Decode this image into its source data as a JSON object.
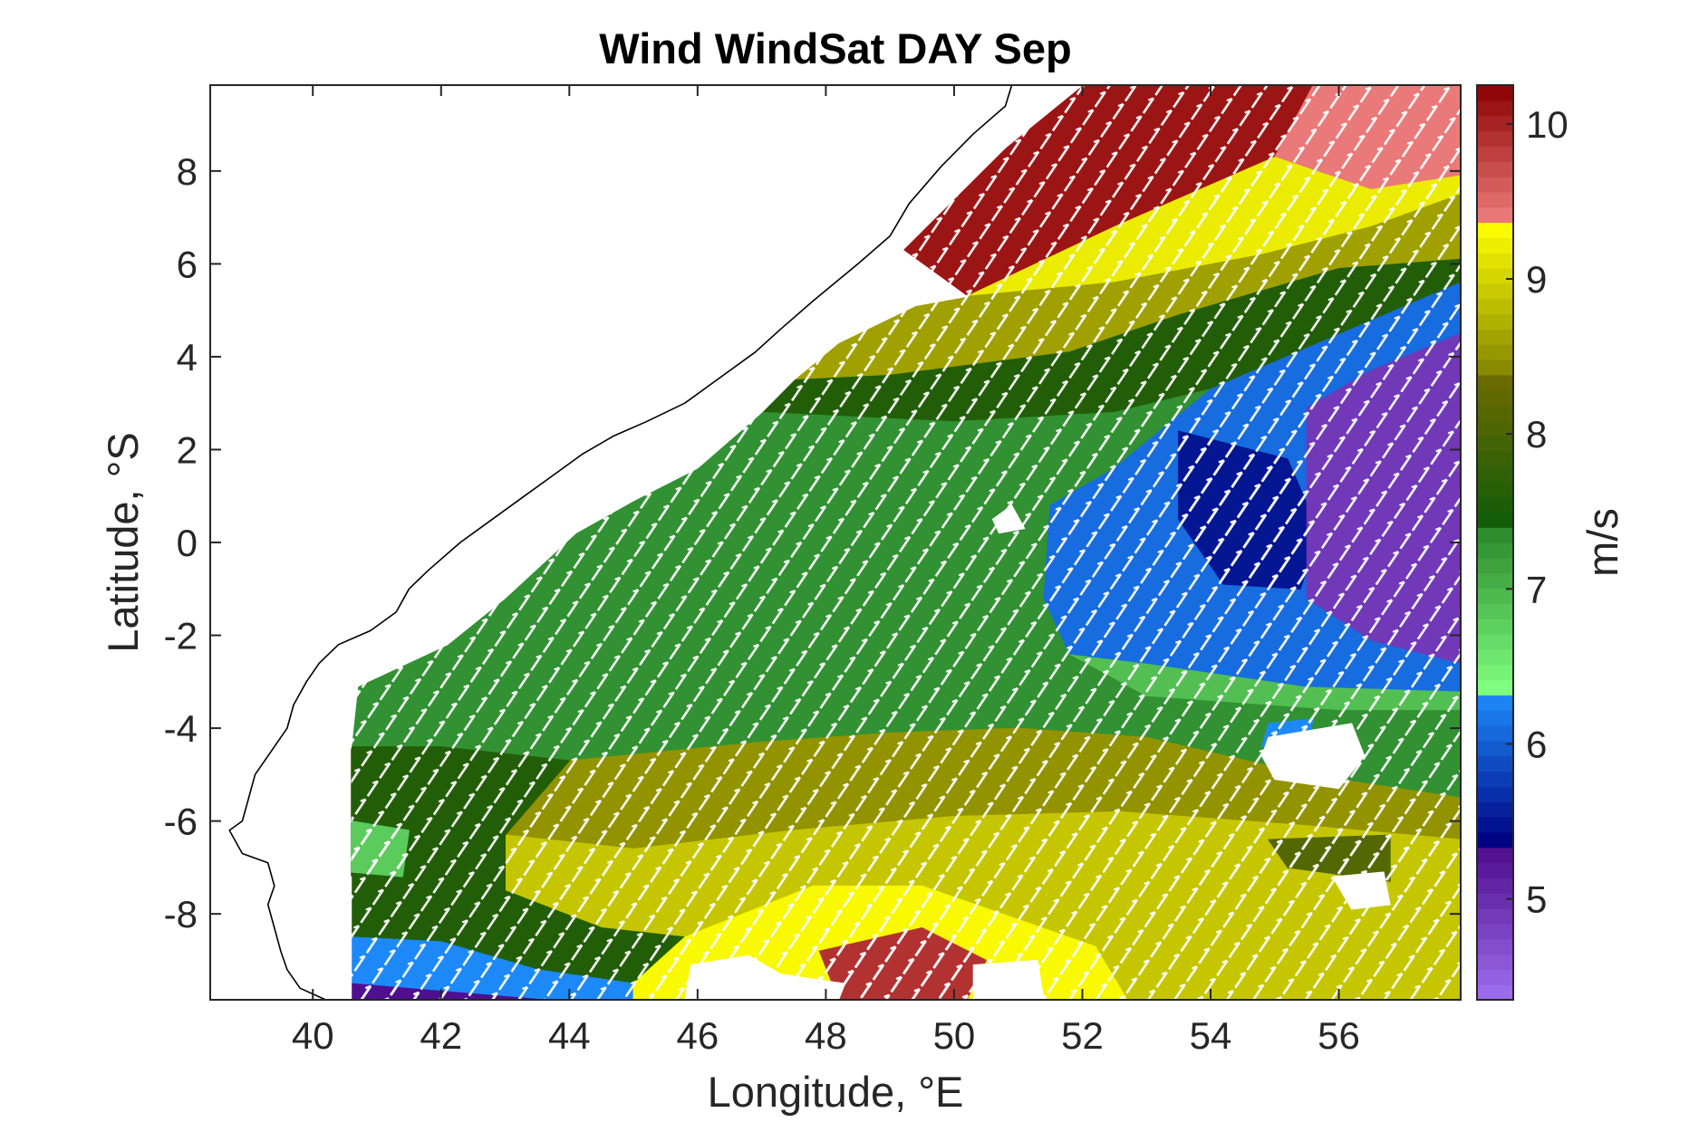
{
  "chart_data": {
    "type": "heatmap",
    "title": "Wind WindSat DAY Sep",
    "xlabel": "Longitude, °E",
    "ylabel": "Latitude, °S",
    "colorbar_label": "m/s",
    "xlim": [
      38.4,
      57.9
    ],
    "ylim": [
      -9.85,
      9.85
    ],
    "x_ticks": [
      40,
      42,
      44,
      46,
      48,
      50,
      52,
      54,
      56
    ],
    "x_tick_labels": [
      "40",
      "42",
      "44",
      "46",
      "48",
      "50",
      "52",
      "54",
      "56"
    ],
    "y_ticks": [
      -8,
      -6,
      -4,
      -2,
      0,
      2,
      4,
      6,
      8
    ],
    "y_tick_labels": [
      "-8",
      "-6",
      "-4",
      "-2",
      "0",
      "2",
      "4",
      "6",
      "8"
    ],
    "colorbar": {
      "range": [
        4.35,
        10.25
      ],
      "ticks": [
        5,
        6,
        7,
        8,
        9,
        10
      ],
      "tick_labels": [
        "5",
        "6",
        "7",
        "8",
        "9",
        "10"
      ],
      "segments": [
        {
          "from": 4.35,
          "to": 5.35,
          "color_low": "#a070f0",
          "color_high": "#4b0a8a"
        },
        {
          "from": 5.35,
          "to": 6.35,
          "color_low": "#000080",
          "color_high": "#1e90ff"
        },
        {
          "from": 6.35,
          "to": 7.35,
          "color_low": "#80ff80",
          "color_high": "#2e8b2e"
        },
        {
          "from": 7.35,
          "to": 8.35,
          "color_low": "#0a5a0a",
          "color_high": "#6b6b00"
        },
        {
          "from": 8.35,
          "to": 9.35,
          "color_low": "#808000",
          "color_high": "#ffff00"
        },
        {
          "from": 9.35,
          "to": 10.25,
          "color_low": "#f08080",
          "color_high": "#8b0000"
        }
      ]
    },
    "regions": [
      {
        "speed": 10.1,
        "poly": [
          [
            52,
            9.85
          ],
          [
            55.6,
            9.85
          ],
          [
            55,
            8.3
          ],
          [
            52.5,
            6.8
          ],
          [
            50.2,
            5.3
          ],
          [
            49.2,
            6.3
          ],
          [
            50.8,
            8.5
          ],
          [
            52,
            9.85
          ]
        ]
      },
      {
        "speed": 9.4,
        "poly": [
          [
            55.6,
            9.85
          ],
          [
            57.9,
            9.85
          ],
          [
            57.9,
            7.9
          ],
          [
            56.5,
            7.6
          ],
          [
            55,
            8.3
          ],
          [
            55.6,
            9.85
          ]
        ]
      },
      {
        "speed": 9.2,
        "poly": [
          [
            52.5,
            6.8
          ],
          [
            55,
            8.3
          ],
          [
            56.5,
            7.6
          ],
          [
            57.9,
            7.9
          ],
          [
            57.9,
            7.5
          ],
          [
            56.5,
            6.8
          ],
          [
            54.8,
            6.2
          ],
          [
            52.5,
            5.6
          ],
          [
            50.2,
            5.3
          ],
          [
            52.5,
            6.8
          ]
        ]
      },
      {
        "speed": 8.6,
        "poly": [
          [
            50.2,
            5.3
          ],
          [
            52.5,
            5.6
          ],
          [
            54.8,
            6.2
          ],
          [
            56.5,
            6.8
          ],
          [
            57.9,
            7.5
          ],
          [
            57.9,
            6.1
          ],
          [
            56,
            5.9
          ],
          [
            53.5,
            4.9
          ],
          [
            51.8,
            4.1
          ],
          [
            49,
            3.6
          ],
          [
            47.5,
            3.5
          ],
          [
            48.2,
            4.3
          ],
          [
            49.4,
            5.1
          ],
          [
            50.2,
            5.3
          ]
        ]
      },
      {
        "speed": 7.6,
        "poly": [
          [
            47.5,
            3.5
          ],
          [
            49,
            3.6
          ],
          [
            51.8,
            4.1
          ],
          [
            53.5,
            4.9
          ],
          [
            56,
            5.9
          ],
          [
            57.9,
            6.1
          ],
          [
            57.9,
            5.6
          ],
          [
            54,
            3.3
          ],
          [
            52.5,
            2.8
          ],
          [
            50,
            2.6
          ],
          [
            47,
            2.8
          ],
          [
            47.5,
            3.5
          ]
        ]
      },
      {
        "speed": 7.3,
        "poly": [
          [
            47,
            2.8
          ],
          [
            50,
            2.6
          ],
          [
            52.5,
            2.8
          ],
          [
            54,
            3.3
          ],
          [
            52.5,
            1.6
          ],
          [
            51.5,
            0.8
          ],
          [
            51.4,
            -1.2
          ],
          [
            51.8,
            -2.4
          ],
          [
            53,
            -3.3
          ],
          [
            56,
            -3.6
          ],
          [
            57.9,
            -3.6
          ],
          [
            57.9,
            -5.5
          ],
          [
            55.5,
            -5
          ],
          [
            53,
            -4.2
          ],
          [
            51,
            -4
          ],
          [
            49,
            -4.1
          ],
          [
            47,
            -4.3
          ],
          [
            45.5,
            -4.5
          ],
          [
            44,
            -4.7
          ],
          [
            42,
            -4.4
          ],
          [
            40.6,
            -4.4
          ],
          [
            40.7,
            -3.1
          ],
          [
            42.1,
            -2.2
          ],
          [
            43,
            -1.2
          ],
          [
            44.1,
            0.2
          ],
          [
            45,
            0.9
          ],
          [
            46,
            1.6
          ],
          [
            47,
            2.8
          ]
        ]
      },
      {
        "speed": 6.9,
        "poly": [
          [
            51.8,
            -2.4
          ],
          [
            53,
            -3.3
          ],
          [
            56,
            -3.6
          ],
          [
            57.9,
            -3.6
          ],
          [
            57.9,
            -3.2
          ],
          [
            55.5,
            -3.1
          ],
          [
            53,
            -2.6
          ],
          [
            51.8,
            -2.4
          ]
        ]
      },
      {
        "speed": 6.1,
        "poly": [
          [
            54,
            3.3
          ],
          [
            57.9,
            5.6
          ],
          [
            57.9,
            4.5
          ],
          [
            56.5,
            3.7
          ],
          [
            55.5,
            2.9
          ],
          [
            55.5,
            -1.2
          ],
          [
            56.5,
            -2.1
          ],
          [
            57.9,
            -2.6
          ],
          [
            57.9,
            -3.2
          ],
          [
            55.5,
            -3.1
          ],
          [
            53,
            -2.6
          ],
          [
            51.8,
            -2.4
          ],
          [
            51.4,
            -1.2
          ],
          [
            51.5,
            0.8
          ],
          [
            52.5,
            1.6
          ],
          [
            54,
            3.3
          ]
        ]
      },
      {
        "speed": 5.5,
        "poly": [
          [
            53.5,
            2.4
          ],
          [
            55.2,
            1.8
          ],
          [
            55.7,
            0.2
          ],
          [
            55.4,
            -1
          ],
          [
            54.2,
            -0.9
          ],
          [
            53.5,
            0.5
          ],
          [
            53.5,
            2.4
          ]
        ]
      },
      {
        "speed": 4.9,
        "poly": [
          [
            55.5,
            2.9
          ],
          [
            56.5,
            3.7
          ],
          [
            57.9,
            4.5
          ],
          [
            57.9,
            -2.6
          ],
          [
            56.5,
            -2.1
          ],
          [
            55.5,
            -1.2
          ],
          [
            55.5,
            2.9
          ]
        ]
      },
      {
        "speed": 8.5,
        "poly": [
          [
            44,
            -4.7
          ],
          [
            45.5,
            -4.5
          ],
          [
            47,
            -4.3
          ],
          [
            49,
            -4.1
          ],
          [
            51,
            -4
          ],
          [
            53,
            -4.2
          ],
          [
            55.5,
            -5
          ],
          [
            57.9,
            -5.5
          ],
          [
            57.9,
            -6.4
          ],
          [
            55.5,
            -6.1
          ],
          [
            52.6,
            -5.8
          ],
          [
            50,
            -5.9
          ],
          [
            47.5,
            -6.2
          ],
          [
            45,
            -6.6
          ],
          [
            43,
            -6.3
          ],
          [
            44,
            -4.7
          ]
        ]
      },
      {
        "speed": 8.9,
        "poly": [
          [
            43,
            -6.3
          ],
          [
            45,
            -6.6
          ],
          [
            47.5,
            -6.2
          ],
          [
            50,
            -5.9
          ],
          [
            52.6,
            -5.8
          ],
          [
            55.5,
            -6.1
          ],
          [
            57.9,
            -6.4
          ],
          [
            57.9,
            -9.85
          ],
          [
            52.7,
            -9.85
          ],
          [
            52.2,
            -8.7
          ],
          [
            49.5,
            -7.4
          ],
          [
            47.8,
            -7.4
          ],
          [
            45.8,
            -8.5
          ],
          [
            44.5,
            -8.3
          ],
          [
            43,
            -7.5
          ],
          [
            43,
            -6.3
          ]
        ]
      },
      {
        "speed": 7.6,
        "poly": [
          [
            40.6,
            -4.4
          ],
          [
            42,
            -4.4
          ],
          [
            44,
            -4.7
          ],
          [
            43,
            -6.3
          ],
          [
            43,
            -7.5
          ],
          [
            44.5,
            -8.3
          ],
          [
            45.8,
            -8.5
          ],
          [
            45,
            -9.5
          ],
          [
            43.5,
            -9.2
          ],
          [
            42,
            -8.6
          ],
          [
            40.6,
            -8.5
          ],
          [
            40.6,
            -4.4
          ]
        ]
      },
      {
        "speed": 6.8,
        "poly": [
          [
            40.6,
            -6
          ],
          [
            41.5,
            -6.2
          ],
          [
            41.4,
            -7.2
          ],
          [
            40.6,
            -7.1
          ],
          [
            40.6,
            -6
          ]
        ]
      },
      {
        "speed": 6.3,
        "poly": [
          [
            40.6,
            -8.5
          ],
          [
            42,
            -8.6
          ],
          [
            43.5,
            -9.2
          ],
          [
            45,
            -9.5
          ],
          [
            45,
            -9.85
          ],
          [
            40.6,
            -9.85
          ],
          [
            40.6,
            -8.5
          ]
        ]
      },
      {
        "speed": 5.3,
        "poly": [
          [
            40.6,
            -9.5
          ],
          [
            43.6,
            -9.85
          ],
          [
            40.6,
            -9.85
          ],
          [
            40.6,
            -9.5
          ]
        ]
      },
      {
        "speed": 9.3,
        "poly": [
          [
            45.8,
            -8.5
          ],
          [
            47.8,
            -7.4
          ],
          [
            49.5,
            -7.4
          ],
          [
            52.2,
            -8.7
          ],
          [
            52.7,
            -9.85
          ],
          [
            45,
            -9.85
          ],
          [
            45,
            -9.5
          ],
          [
            45.8,
            -8.5
          ]
        ]
      },
      {
        "speed": 9.9,
        "poly": [
          [
            47.9,
            -8.8
          ],
          [
            49.5,
            -8.3
          ],
          [
            50.5,
            -9
          ],
          [
            50.2,
            -9.85
          ],
          [
            48.2,
            -9.85
          ],
          [
            47.9,
            -8.8
          ]
        ]
      },
      {
        "speed": 6.3,
        "poly": [
          [
            54.9,
            -3.9
          ],
          [
            55.6,
            -3.8
          ],
          [
            55.5,
            -4.4
          ],
          [
            54.8,
            -4.4
          ],
          [
            54.9,
            -3.9
          ]
        ]
      },
      {
        "speed": 8.1,
        "poly": [
          [
            54.9,
            -6.4
          ],
          [
            56.8,
            -6.3
          ],
          [
            56.8,
            -7.3
          ],
          [
            55.2,
            -7
          ],
          [
            54.9,
            -6.4
          ]
        ]
      }
    ],
    "no_data": [
      [
        [
          38.4,
          -9.85
        ],
        [
          38.4,
          9.85
        ],
        [
          52,
          9.85
        ],
        [
          50.8,
          8.5
        ],
        [
          49.2,
          6.3
        ],
        [
          50.2,
          5.3
        ],
        [
          49.4,
          5.1
        ],
        [
          48.2,
          4.3
        ],
        [
          47.5,
          3.5
        ],
        [
          47,
          2.8
        ],
        [
          46,
          1.6
        ],
        [
          45,
          0.9
        ],
        [
          44.1,
          0.2
        ],
        [
          43,
          -1.2
        ],
        [
          42.1,
          -2.2
        ],
        [
          40.7,
          -3.1
        ],
        [
          40.6,
          -4.4
        ],
        [
          40.2,
          -5.9
        ],
        [
          40.3,
          -7.1
        ],
        [
          40.6,
          -7.2
        ],
        [
          40.6,
          -9.85
        ],
        [
          38.4,
          -9.85
        ]
      ],
      [
        [
          57.9,
          -9.85
        ],
        [
          57.9,
          9.85
        ],
        [
          58.5,
          9.85
        ],
        [
          58.5,
          -9.85
        ],
        [
          57.9,
          -9.85
        ]
      ],
      [
        [
          54.9,
          -4.2
        ],
        [
          56.2,
          -3.9
        ],
        [
          56.4,
          -4.6
        ],
        [
          56,
          -5.3
        ],
        [
          55,
          -5.1
        ],
        [
          54.8,
          -4.6
        ],
        [
          54.9,
          -4.2
        ]
      ],
      [
        [
          45.9,
          -9.1
        ],
        [
          46.8,
          -8.9
        ],
        [
          47.3,
          -9.3
        ],
        [
          48.3,
          -9.5
        ],
        [
          48.2,
          -9.85
        ],
        [
          45.8,
          -9.85
        ],
        [
          45.9,
          -9.1
        ]
      ],
      [
        [
          50.3,
          -9.1
        ],
        [
          51.3,
          -9
        ],
        [
          51.4,
          -9.85
        ],
        [
          50.3,
          -9.85
        ],
        [
          50.3,
          -9.1
        ]
      ],
      [
        [
          55.9,
          -7.2
        ],
        [
          56.7,
          -7.1
        ],
        [
          56.8,
          -7.8
        ],
        [
          56.2,
          -7.9
        ],
        [
          55.9,
          -7.2
        ]
      ],
      [
        [
          50.6,
          0.5
        ],
        [
          50.9,
          0.8
        ],
        [
          51.1,
          0.3
        ],
        [
          50.7,
          0.2
        ],
        [
          50.6,
          0.5
        ]
      ]
    ],
    "coastline": [
      [
        50.9,
        9.85
      ],
      [
        50.8,
        9.4
      ],
      [
        50.3,
        8.8
      ],
      [
        49.8,
        8.1
      ],
      [
        49.3,
        7.3
      ],
      [
        49,
        6.6
      ],
      [
        48.5,
        6
      ],
      [
        47.8,
        5.2
      ],
      [
        47.3,
        4.6
      ],
      [
        46.9,
        4.1
      ],
      [
        46.4,
        3.6
      ],
      [
        45.8,
        3
      ],
      [
        45.2,
        2.6
      ],
      [
        44.7,
        2.3
      ],
      [
        44.2,
        1.9
      ],
      [
        43.8,
        1.5
      ],
      [
        43.3,
        1
      ],
      [
        42.9,
        0.6
      ],
      [
        42.3,
        0
      ],
      [
        41.8,
        -0.6
      ],
      [
        41.5,
        -1
      ],
      [
        41.3,
        -1.5
      ],
      [
        40.9,
        -1.9
      ],
      [
        40.4,
        -2.2
      ],
      [
        40.1,
        -2.6
      ],
      [
        39.9,
        -3
      ],
      [
        39.7,
        -3.5
      ],
      [
        39.6,
        -4
      ],
      [
        39.3,
        -4.6
      ],
      [
        39.1,
        -5
      ],
      [
        39,
        -5.5
      ],
      [
        38.9,
        -6
      ],
      [
        38.7,
        -6.2
      ],
      [
        38.9,
        -6.7
      ],
      [
        39.3,
        -6.9
      ],
      [
        39.4,
        -7.4
      ],
      [
        39.3,
        -7.8
      ],
      [
        39.4,
        -8.3
      ],
      [
        39.5,
        -8.8
      ],
      [
        39.6,
        -9.2
      ],
      [
        39.8,
        -9.6
      ],
      [
        40.2,
        -9.85
      ]
    ],
    "wind_vector_color": "#ffffff",
    "coastline_color": "#000000"
  }
}
